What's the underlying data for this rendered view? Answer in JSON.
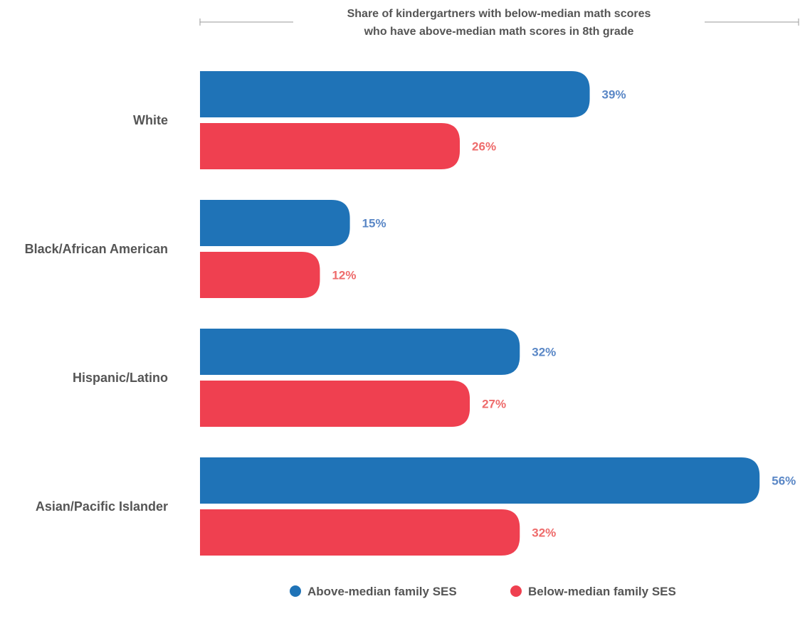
{
  "chart_data": {
    "type": "bar",
    "orientation": "horizontal",
    "title": "Share of kindergartners with below-median math scores who have above-median math scores in 8th grade",
    "title_lines": [
      "Share of kindergartners with below-median math scores",
      "who have above-median math scores in 8th grade"
    ],
    "categories": [
      "White",
      "Black/African American",
      "Hispanic/Latino",
      "Asian/Pacific Islander"
    ],
    "series": [
      {
        "name": "Above-median family SES",
        "values": [
          39,
          15,
          32,
          56
        ],
        "labels": [
          "39%",
          "15%",
          "32%",
          "56%"
        ],
        "color": "#1f73b7",
        "label_color": "#5a87c6"
      },
      {
        "name": "Below-median family SES",
        "values": [
          26,
          12,
          27,
          32
        ],
        "labels": [
          "26%",
          "12%",
          "27%",
          "32%"
        ],
        "color": "#ef4050",
        "label_color": "#ee6b6b"
      }
    ],
    "xlim": [
      0,
      56
    ],
    "grid": false,
    "legend": "bottom-center",
    "unit": "%"
  }
}
